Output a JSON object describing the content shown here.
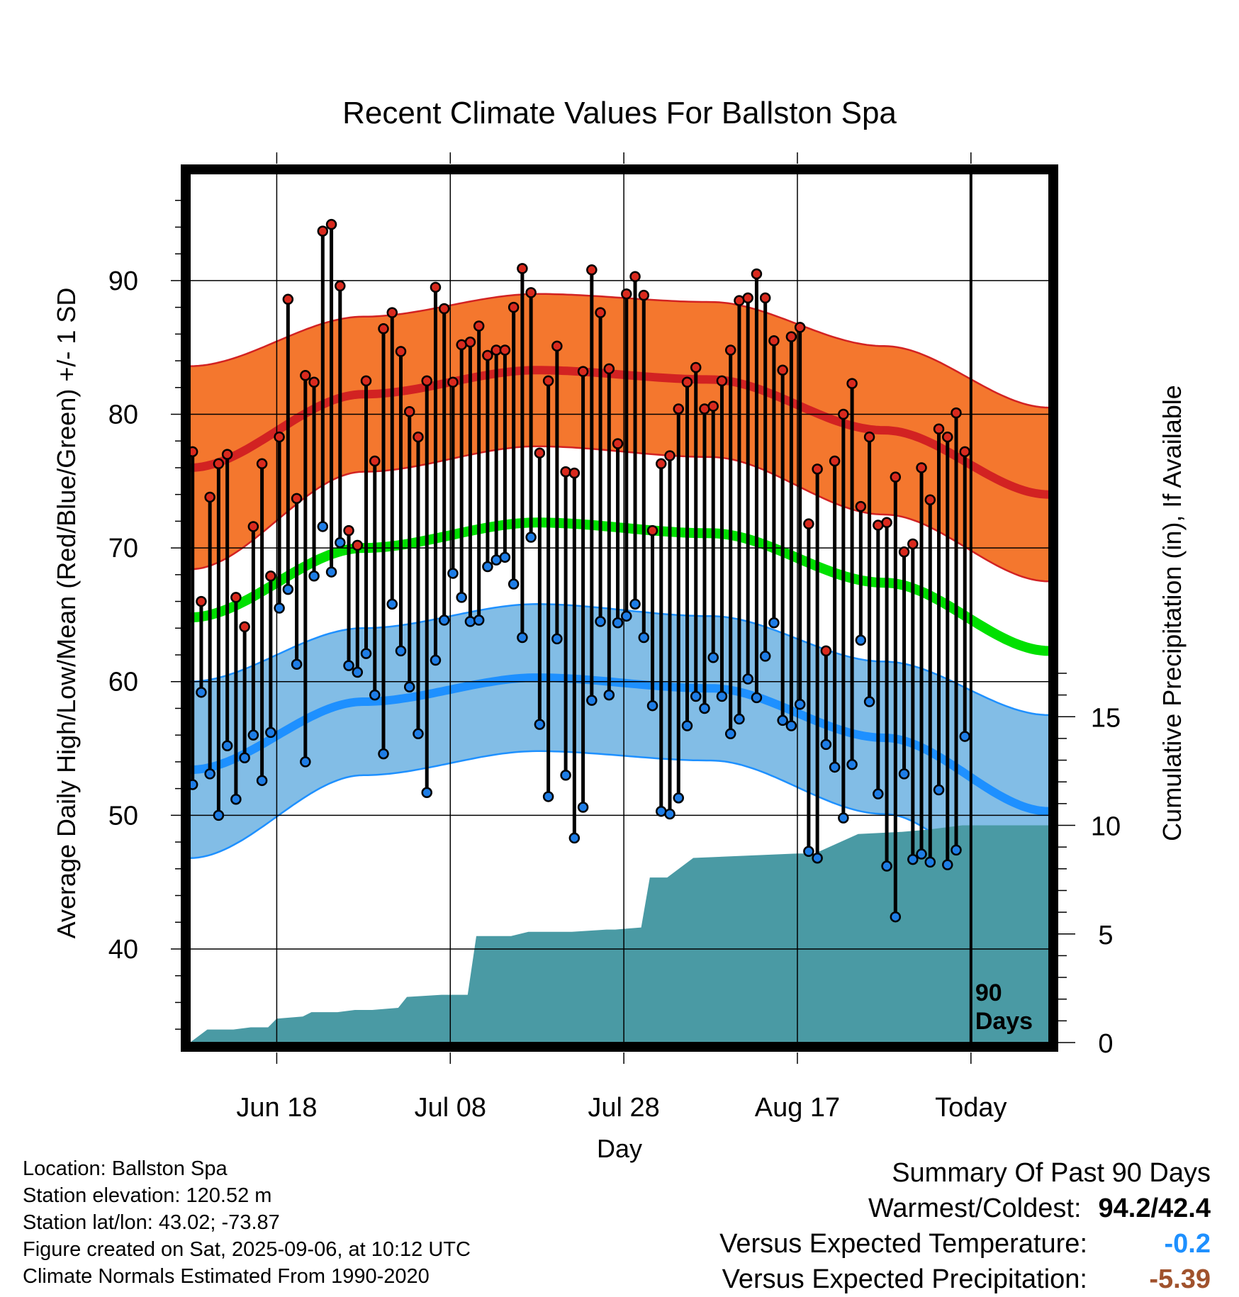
{
  "chart_data": {
    "type": "line",
    "title": "Recent Climate Values For Ballston Spa",
    "xlabel": "Day",
    "ylabel": "Average Daily High/Low/Mean (Red/Blue/Green) +/- 1 SD",
    "y2label": "Cumulative Precipitation (in), If Available",
    "ylim": [
      33,
      98
    ],
    "y2lim": [
      0,
      40
    ],
    "ytick_labels": [
      "40",
      "50",
      "60",
      "70",
      "80",
      "90"
    ],
    "y2tick_labels": [
      "0",
      "5",
      "10",
      "15"
    ],
    "xtick_labels": [
      "Jun 18",
      "Jul 08",
      "Jul 28",
      "Aug 17",
      "Today"
    ],
    "xtick_day_index": [
      10,
      30,
      50,
      70,
      90
    ],
    "marker_label": "90 Days",
    "days": 99,
    "normal_high": {
      "day": [
        0,
        20,
        40,
        60,
        80,
        99
      ],
      "values": [
        76,
        81.5,
        83.3,
        82.6,
        78.8,
        74
      ]
    },
    "normal_high_sd": {
      "day": [
        0,
        20,
        40,
        60,
        80,
        99
      ],
      "values": [
        7.6,
        5.8,
        5.7,
        5.8,
        6.3,
        6.5
      ]
    },
    "normal_low": {
      "day": [
        0,
        20,
        40,
        60,
        80,
        99
      ],
      "values": [
        53.4,
        58.5,
        60.3,
        59.5,
        55.8,
        50.3
      ]
    },
    "normal_low_sd": {
      "day": [
        0,
        20,
        40,
        60,
        80,
        99
      ],
      "values": [
        6.6,
        5.5,
        5.5,
        5.4,
        5.7,
        7.2
      ]
    },
    "normal_mean": {
      "day": [
        0,
        20,
        40,
        60,
        80,
        99
      ],
      "values": [
        64.8,
        70,
        71.9,
        71.1,
        67.4,
        62.3
      ]
    },
    "series": [
      {
        "name": "High",
        "values": [
          77.2,
          66,
          73.8,
          76.3,
          77,
          66.3,
          64.1,
          71.6,
          76.3,
          67.9,
          78.3,
          88.6,
          73.7,
          82.9,
          82.4,
          93.7,
          94.2,
          89.6,
          71.3,
          70.2,
          82.5,
          76.5,
          86.4,
          87.6,
          84.7,
          80.2,
          78.3,
          82.5,
          89.5,
          87.9,
          82.4,
          85.2,
          85.4,
          86.6,
          84.4,
          84.8,
          84.8,
          88,
          90.9,
          89.1,
          77.1,
          82.5,
          85.1,
          75.7,
          75.6,
          83.2,
          90.8,
          87.6,
          83.4,
          77.8,
          89,
          90.3,
          88.9,
          71.3,
          76.3,
          76.9,
          80.4,
          82.4,
          83.5,
          80.4,
          80.6,
          82.5,
          84.8,
          88.5,
          88.7,
          90.5,
          88.7,
          85.5,
          83.3,
          85.8,
          86.5,
          71.8,
          75.9,
          62.3,
          76.5,
          80,
          82.3,
          73.1,
          78.3,
          71.7,
          71.9,
          75.3,
          69.7,
          70.3,
          76,
          73.6,
          78.9,
          78.3,
          80.1,
          77.2
        ]
      },
      {
        "name": "Low",
        "values": [
          52.3,
          59.2,
          53.1,
          50,
          55.2,
          51.2,
          54.3,
          56,
          52.6,
          56.2,
          65.5,
          66.9,
          61.3,
          54,
          67.9,
          71.6,
          68.2,
          70.4,
          61.2,
          60.7,
          62.1,
          59,
          54.6,
          65.8,
          62.3,
          59.6,
          56.1,
          51.7,
          61.6,
          64.6,
          68.1,
          66.3,
          64.5,
          64.6,
          68.6,
          69.1,
          69.3,
          67.3,
          63.3,
          70.8,
          56.8,
          51.4,
          63.2,
          53,
          48.3,
          50.6,
          58.6,
          64.5,
          59,
          64.4,
          64.9,
          65.8,
          63.3,
          58.2,
          50.3,
          50.1,
          51.3,
          56.7,
          58.9,
          58,
          61.8,
          58.9,
          56.1,
          57.2,
          60.2,
          58.8,
          61.9,
          64.4,
          57.1,
          56.7,
          58.3,
          47.3,
          46.8,
          55.3,
          53.6,
          49.8,
          53.8,
          63.1,
          58.5,
          51.6,
          46.2,
          42.4,
          53.1,
          46.7,
          47.1,
          46.5,
          51.9,
          46.3,
          47.4,
          55.9
        ]
      },
      {
        "name": "Cumulative Precipitation",
        "day": [
          0,
          2,
          5,
          7,
          9,
          10,
          13,
          14,
          17,
          19,
          21,
          24,
          25,
          29,
          32,
          33,
          37,
          39,
          44,
          48,
          49,
          52,
          53,
          55,
          58,
          64,
          70,
          72,
          77,
          82,
          85,
          89,
          99
        ],
        "values": [
          0,
          0.6,
          0.6,
          0.7,
          0.7,
          1.1,
          1.2,
          1.4,
          1.4,
          1.5,
          1.5,
          1.6,
          2.1,
          2.2,
          2.2,
          4.9,
          4.9,
          5.1,
          5.1,
          5.2,
          5.2,
          5.3,
          7.6,
          7.6,
          8.5,
          8.6,
          8.7,
          8.7,
          9.6,
          9.7,
          9.8,
          10.0,
          10.0
        ]
      }
    ],
    "colors": {
      "high_band": "#f4772e",
      "high_line": "#d22222",
      "high_edge": "#d22222",
      "low_band": "#82bde6",
      "low_line": "#1e90ff",
      "low_edge": "#1e90ff",
      "mean_line": "#00e000",
      "precip": "#4a9aa4",
      "high_marker": "#d92a1e",
      "low_marker": "#1e7de6"
    },
    "grid": true
  },
  "info": [
    "Location: Ballston Spa",
    "Station elevation: 120.52 m",
    "Station lat/lon: 43.02; -73.87",
    "Figure created on Sat, 2025-09-06, at 10:12 UTC",
    "Climate Normals Estimated From 1990-2020"
  ],
  "summary": {
    "heading": "Summary Of Past 90 Days",
    "warmest_coldest_label": "Warmest/Coldest:",
    "warmest_coldest_value": "94.2/42.4",
    "temp_label": "Versus Expected Temperature:",
    "temp_value": "-0.2",
    "precip_label": "Versus Expected Precipitation:",
    "precip_value": "-5.39"
  }
}
